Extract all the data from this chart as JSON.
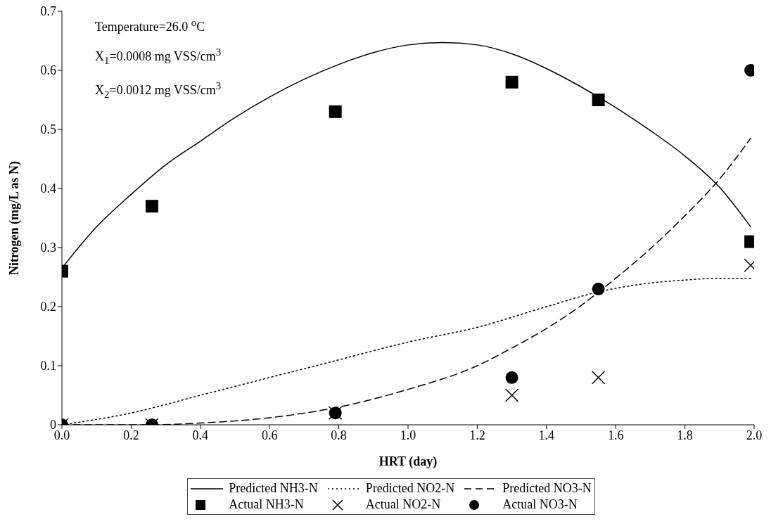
{
  "chart_data": {
    "type": "line",
    "xlabel": "HRT (day)",
    "ylabel": "Nitrogen (mg/L as N)",
    "annotations": [
      "Temperature=26.0 $^{o}$C",
      "X$_{1}$=0.0008 mg VSS/cm$^{3}$",
      "X$_{2}$=0.0012 mg VSS/cm$^{3}$"
    ],
    "xlim": [
      0,
      2
    ],
    "ylim": [
      0,
      0.7
    ],
    "xticks": [
      {
        "value": 0,
        "label": "0.0"
      },
      0.2,
      0.4,
      0.6,
      0.8,
      {
        "value": 1,
        "label": "1.0"
      },
      1.2,
      1.4,
      1.6,
      1.8,
      {
        "value": 2,
        "label": "2.0"
      }
    ],
    "yticks": [
      0,
      0.1,
      0.2,
      0.3,
      0.4,
      0.5,
      0.6,
      0.7
    ],
    "legend": "bottom",
    "series": [
      {
        "name": "Predicted NH3-N",
        "color": "#000000",
        "line_style": "solid",
        "marker": "none",
        "x": [
          0,
          0.1,
          0.2,
          0.3,
          0.4,
          0.5,
          0.6,
          0.7,
          0.8,
          0.9,
          1.0,
          1.1,
          1.2,
          1.3,
          1.4,
          1.5,
          1.6,
          1.7,
          1.8,
          1.9,
          1.99
        ],
        "values": [
          0.265,
          0.335,
          0.39,
          0.44,
          0.48,
          0.52,
          0.555,
          0.585,
          0.61,
          0.63,
          0.643,
          0.647,
          0.643,
          0.628,
          0.603,
          0.572,
          0.537,
          0.498,
          0.455,
          0.402,
          0.335
        ]
      },
      {
        "name": "Predicted NO2-N",
        "color": "#000000",
        "line_style": "dotted",
        "marker": "none",
        "x": [
          0,
          0.2,
          0.4,
          0.6,
          0.8,
          1.0,
          1.2,
          1.4,
          1.55,
          1.7,
          1.8,
          1.9,
          1.99
        ],
        "values": [
          0,
          0.02,
          0.05,
          0.08,
          0.11,
          0.14,
          0.165,
          0.2,
          0.225,
          0.24,
          0.245,
          0.248,
          0.248
        ]
      },
      {
        "name": "Predicted NO3-N",
        "color": "#000000",
        "line_style": "dashed",
        "marker": "none",
        "x": [
          0,
          0.26,
          0.4,
          0.6,
          0.8,
          1.0,
          1.2,
          1.3,
          1.4,
          1.5,
          1.6,
          1.7,
          1.8,
          1.9,
          1.99
        ],
        "values": [
          0,
          0,
          0.003,
          0.012,
          0.03,
          0.06,
          0.1,
          0.13,
          0.163,
          0.202,
          0.248,
          0.298,
          0.354,
          0.416,
          0.485
        ]
      },
      {
        "name": "Actual NH3-N",
        "type": "scatter",
        "color": "#000000",
        "marker": "square",
        "x": [
          0,
          0.26,
          0.79,
          1.3,
          1.55,
          1.99
        ],
        "values": [
          0.26,
          0.37,
          0.53,
          0.58,
          0.55,
          0.31
        ]
      },
      {
        "name": "Actual NO2-N",
        "type": "scatter",
        "color": "#000000",
        "marker": "cross",
        "x": [
          0,
          0.26,
          0.79,
          1.3,
          1.55,
          1.99
        ],
        "values": [
          0,
          0,
          0.02,
          0.05,
          0.08,
          0.27
        ]
      },
      {
        "name": "Actual NO3-N",
        "type": "scatter",
        "color": "#000000",
        "marker": "circle",
        "x": [
          0,
          0.26,
          0.79,
          1.3,
          1.55,
          1.99
        ],
        "values": [
          0,
          0,
          0.02,
          0.08,
          0.23,
          0.6
        ]
      }
    ]
  }
}
